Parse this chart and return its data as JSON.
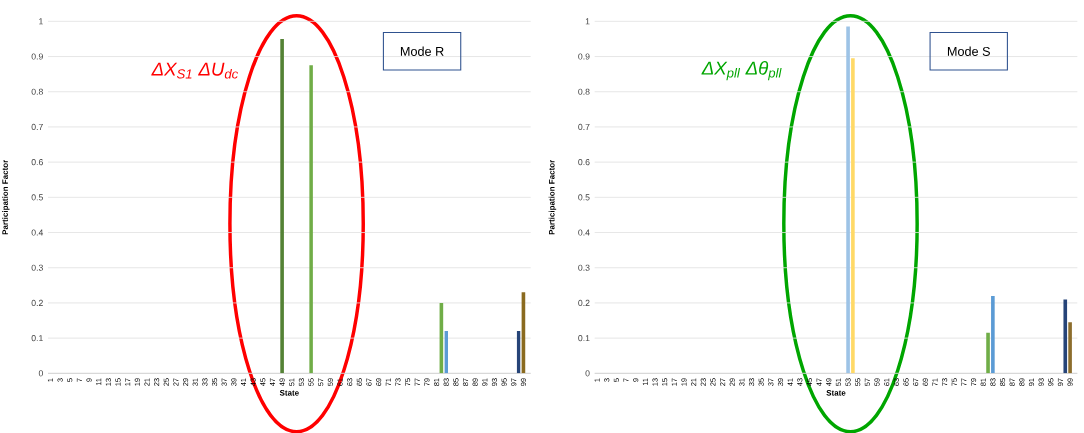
{
  "chart_data": [
    {
      "type": "bar",
      "xlabel": "State",
      "ylabel": "Participation Factor",
      "x": [
        49,
        55,
        82,
        83,
        98,
        99
      ],
      "values": [
        0.95,
        0.875,
        0.2,
        0.12,
        0.12,
        0.23
      ],
      "colors": [
        "#548235",
        "#70ad47",
        "#70ad47",
        "#5b9bd5",
        "#264478",
        "#8a6a1f"
      ],
      "xlim": [
        0.5,
        100.5
      ],
      "xticks": [
        1,
        3,
        5,
        7,
        9,
        11,
        13,
        15,
        17,
        19,
        21,
        23,
        25,
        27,
        29,
        31,
        33,
        35,
        37,
        39,
        41,
        43,
        45,
        47,
        49,
        51,
        53,
        55,
        57,
        59,
        61,
        63,
        65,
        67,
        69,
        71,
        73,
        75,
        77,
        79,
        81,
        83,
        85,
        87,
        89,
        91,
        93,
        95,
        97,
        99
      ],
      "ylim": [
        0,
        1
      ],
      "yticks": [
        0,
        0.1,
        0.2,
        0.3,
        0.4,
        0.5,
        0.6,
        0.7,
        0.8,
        0.9,
        1
      ],
      "grid": "y",
      "annotations": [
        "Mode R",
        "ΔX$_{S1}$ ΔU$_{dc}$"
      ]
    },
    {
      "type": "bar",
      "xlabel": "State",
      "ylabel": "Participation Factor",
      "x": [
        53,
        54,
        82,
        83,
        98,
        99
      ],
      "values": [
        0.985,
        0.895,
        0.115,
        0.22,
        0.21,
        0.145
      ],
      "colors": [
        "#9dc3e6",
        "#ffd966",
        "#70ad47",
        "#5b9bd5",
        "#264478",
        "#8c6d2c"
      ],
      "xlim": [
        0.5,
        100.5
      ],
      "xticks": [
        1,
        3,
        5,
        7,
        9,
        11,
        13,
        15,
        17,
        19,
        21,
        23,
        25,
        27,
        29,
        31,
        33,
        35,
        37,
        39,
        41,
        43,
        45,
        47,
        49,
        51,
        53,
        55,
        57,
        59,
        61,
        63,
        65,
        67,
        69,
        71,
        73,
        75,
        77,
        79,
        81,
        83,
        85,
        87,
        89,
        91,
        93,
        95,
        97,
        99
      ],
      "ylim": [
        0,
        1
      ],
      "yticks": [
        0,
        0.1,
        0.2,
        0.3,
        0.4,
        0.5,
        0.6,
        0.7,
        0.8,
        0.9,
        1
      ],
      "grid": "y",
      "annotations": [
        "Mode S",
        "ΔX$_{pll}$ Δθ$_{pll}$"
      ]
    }
  ]
}
